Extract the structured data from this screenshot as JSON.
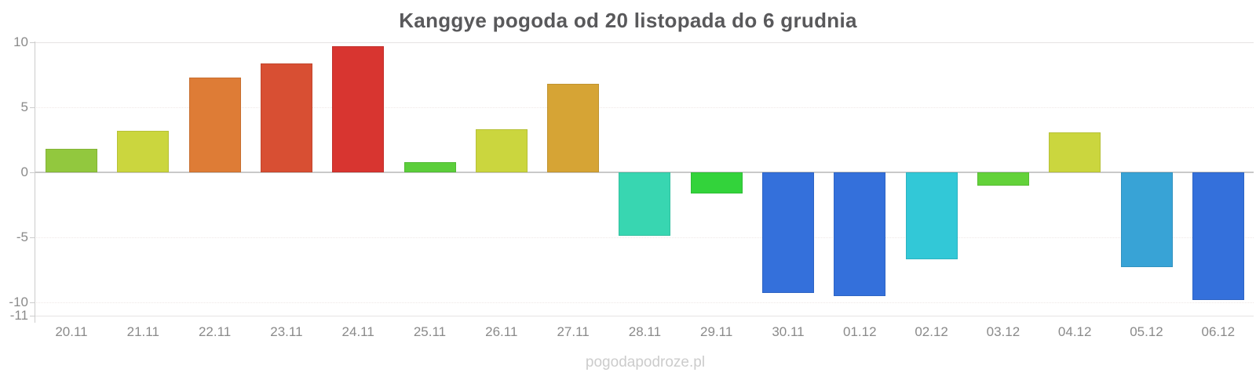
{
  "chart_data": {
    "type": "bar",
    "title": "Kanggye pogoda od 20 listopada do 6 grudnia",
    "watermark": "pogodapodroze.pl",
    "categories": [
      "20.11",
      "21.11",
      "22.11",
      "23.11",
      "24.11",
      "25.11",
      "26.11",
      "27.11",
      "28.11",
      "29.11",
      "30.11",
      "01.12",
      "02.12",
      "03.12",
      "04.12",
      "05.12",
      "06.12"
    ],
    "values": [
      1.8,
      3.2,
      7.3,
      8.4,
      9.7,
      0.8,
      3.3,
      6.8,
      -4.9,
      -1.6,
      -9.3,
      -9.5,
      -6.7,
      -1.0,
      3.1,
      -7.3,
      -9.8
    ],
    "bar_colors": [
      "#92C83E",
      "#CBD63E",
      "#DE7C36",
      "#D84F33",
      "#D83530",
      "#5BCE3B",
      "#CBD63E",
      "#D6A435",
      "#38D6B1",
      "#33D33B",
      "#3470DB",
      "#3470DB",
      "#32C8D7",
      "#63D23A",
      "#CBD63E",
      "#38A3D6",
      "#3470DB"
    ],
    "yticks": [
      10,
      5,
      0,
      -5,
      -10,
      -11
    ],
    "ylim": [
      -11,
      10
    ],
    "xlabel": "",
    "ylabel": "",
    "legend": "none",
    "grid": "horizontal",
    "title_color": "#59595b",
    "axis_label_color": "#8a8a8a",
    "watermark_color": "#cccccc",
    "zero_line_color": "#c9c9c9"
  }
}
